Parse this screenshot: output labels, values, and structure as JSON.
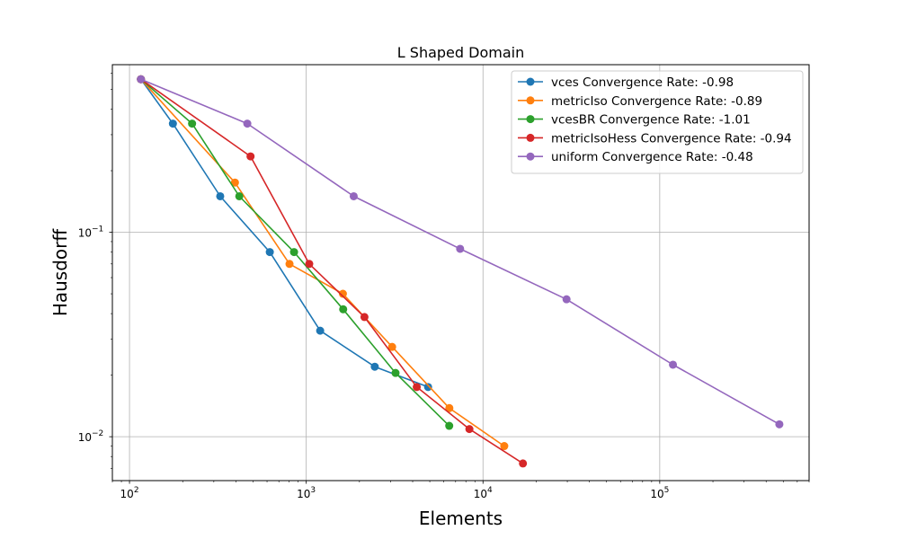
{
  "chart_data": {
    "type": "line",
    "title": "L Shaped Domain",
    "xlabel": "Elements",
    "ylabel": "Hausdorff",
    "xscale": "log",
    "yscale": "log",
    "xlim": [
      80,
      700000
    ],
    "ylim": [
      0.0061,
      0.66
    ],
    "x_ticks": [
      {
        "value": 100,
        "base": "10",
        "exp": "2"
      },
      {
        "value": 1000,
        "base": "10",
        "exp": "3"
      },
      {
        "value": 10000,
        "base": "10",
        "exp": "4"
      },
      {
        "value": 100000,
        "base": "10",
        "exp": "5"
      }
    ],
    "y_ticks": [
      {
        "value": 0.1,
        "base": "10",
        "exp": "−1"
      },
      {
        "value": 0.01,
        "base": "10",
        "exp": "−2"
      }
    ],
    "grid": true,
    "legend_position": "top-right",
    "series": [
      {
        "name": "vces Convergence Rate: -0.98",
        "color": "#1f77b4",
        "x": [
          116,
          176,
          326,
          622,
          1199,
          2442,
          4891
        ],
        "y": [
          0.56,
          0.34,
          0.15,
          0.08,
          0.033,
          0.022,
          0.0175
        ]
      },
      {
        "name": "metricIso Convergence Rate: -0.89",
        "color": "#ff7f0e",
        "x": [
          116,
          395,
          804,
          1612,
          3061,
          6451,
          13195
        ],
        "y": [
          0.56,
          0.175,
          0.07,
          0.05,
          0.0275,
          0.0138,
          0.009
        ]
      },
      {
        "name": "vcesBR Convergence Rate: -1.01",
        "color": "#2ca02c",
        "x": [
          116,
          226,
          418,
          853,
          1618,
          3201,
          6442
        ],
        "y": [
          0.56,
          0.34,
          0.15,
          0.08,
          0.042,
          0.0205,
          0.0113
        ]
      },
      {
        "name": "metricIsoHess Convergence Rate: -0.94",
        "color": "#d62728",
        "x": [
          116,
          484,
          1040,
          2135,
          4219,
          8378,
          16826
        ],
        "y": [
          0.56,
          0.235,
          0.07,
          0.0385,
          0.0175,
          0.0109,
          0.0074
        ]
      },
      {
        "name": "uniform Convergence Rate: -0.48",
        "color": "#9467bd",
        "x": [
          116,
          464,
          1856,
          7424,
          29696,
          118784,
          475136
        ],
        "y": [
          0.56,
          0.34,
          0.15,
          0.083,
          0.047,
          0.0225,
          0.0115
        ]
      }
    ]
  }
}
